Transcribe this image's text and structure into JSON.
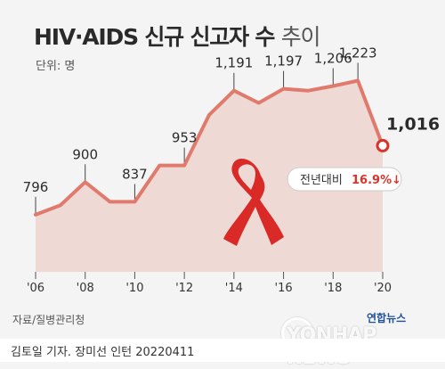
{
  "title_main": "HIV·AIDS 신규 신고자 수",
  "title_suffix": "추이",
  "unit": "단위: 명",
  "source": "자료/질병관리청",
  "logo_text": "연합뉴스",
  "watermark": "YONHAP NEWS",
  "credit": "김토일 기자. 장미선 인턴  20220411",
  "callout": {
    "label": "전년대비",
    "value": "16.9%↓"
  },
  "colors": {
    "line": "#e07a6c",
    "area": "#efd9d5",
    "accent": "#d9342b",
    "ribbon": "#d92a27"
  },
  "chart_data": {
    "type": "area",
    "x": [
      "2006",
      "2007",
      "2008",
      "2009",
      "2010",
      "2011",
      "2012",
      "2013",
      "2014",
      "2015",
      "2016",
      "2017",
      "2018",
      "2019",
      "2020"
    ],
    "values": [
      796,
      826,
      900,
      837,
      837,
      953,
      953,
      1114,
      1191,
      1152,
      1197,
      1191,
      1206,
      1223,
      1016
    ],
    "point_labels": [
      {
        "x": "2006",
        "text": "796"
      },
      {
        "x": "2008",
        "text": "900"
      },
      {
        "x": "2010",
        "text": "837"
      },
      {
        "x": "2012",
        "text": "953"
      },
      {
        "x": "2014",
        "text": "1,191"
      },
      {
        "x": "2016",
        "text": "1,197"
      },
      {
        "x": "2018",
        "text": "1,206"
      },
      {
        "x": "2019",
        "text": "1,223"
      },
      {
        "x": "2020",
        "text": "1,016"
      }
    ],
    "tick_labels": [
      "'06",
      "'08",
      "'10",
      "'12",
      "'14",
      "'16",
      "'18",
      "'20"
    ],
    "tick_years": [
      "2006",
      "2008",
      "2010",
      "2012",
      "2014",
      "2016",
      "2018",
      "2020"
    ],
    "ylim": [
      0,
      1300
    ],
    "grid": false,
    "legend": "none"
  }
}
